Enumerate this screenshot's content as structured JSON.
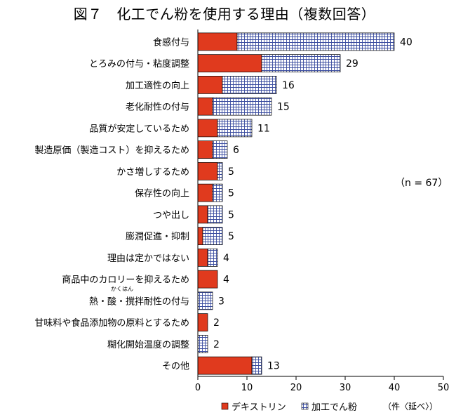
{
  "title": "図７　化工でん粉を使用する理由（複数回答）",
  "note": "（n = 67）",
  "unit_note": "（件〈延べ〉）",
  "ruby": "かくはん",
  "colors": {
    "dextrin": "#e03a1e",
    "modified_starch_fill": "#ffffff",
    "modified_starch_grid": "#3b4da0",
    "axis": "#000000"
  },
  "chart_data": {
    "type": "bar",
    "orientation": "horizontal",
    "stacked": true,
    "categories": [
      "食感付与",
      "とろみの付与・粘度調整",
      "加工適性の向上",
      "老化耐性の付与",
      "品質が安定しているため",
      "製造原価（製造コスト）を抑えるため",
      "かさ増しするため",
      "保存性の向上",
      "つや出し",
      "膨潤促進・抑制",
      "理由は定かではない",
      "商品中のカロリーを抑えるため",
      "熱・酸・撹拌耐性の付与",
      "甘味料や食品添加物の原料とするため",
      "糊化開始温度の調整",
      "その他"
    ],
    "series": [
      {
        "name": "デキストリン",
        "values": [
          8,
          13,
          5,
          3,
          4,
          3,
          4,
          3,
          2,
          1,
          2,
          4,
          0,
          2,
          0,
          11
        ]
      },
      {
        "name": "加工でん粉",
        "values": [
          32,
          16,
          11,
          12,
          7,
          3,
          1,
          2,
          3,
          4,
          2,
          0,
          3,
          0,
          2,
          2
        ]
      }
    ],
    "totals": [
      40,
      29,
      16,
      15,
      11,
      6,
      5,
      5,
      5,
      5,
      4,
      4,
      3,
      2,
      2,
      13
    ],
    "xticks": [
      0,
      10,
      20,
      30,
      40,
      50
    ],
    "xlim": [
      0,
      50
    ],
    "legend_position": "bottom"
  }
}
